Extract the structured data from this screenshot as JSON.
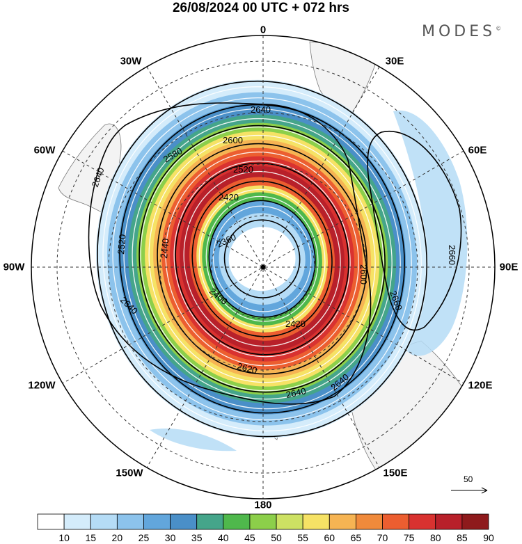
{
  "title": "26/08/2024  00 UTC  + 072 hrs",
  "brand": "MODES",
  "brand_mark": "©",
  "longitudes": {
    "top": "0",
    "top_right": "30E",
    "right_upper": "60E",
    "right": "90E",
    "right_lower": "120E",
    "bottom_right": "150E",
    "bottom": "180",
    "bottom_left": "150W",
    "left_lower": "120W",
    "left": "90W",
    "left_upper": "60W",
    "top_left": "30W"
  },
  "contours": {
    "c2640_top": "2640",
    "c2600": "2600",
    "c2580": "2580",
    "c2520": "2520",
    "c2420": "2420",
    "c2360": "2360",
    "c2640_left": "2640",
    "c2520_left": "2520",
    "c2440": "2440",
    "c2400": "2400",
    "c2640_lower_left": "2640",
    "c2620": "2620",
    "c2640_bottom": "2640",
    "c2640_br": "2640",
    "c2420_low": "2420",
    "c2600_right": "2600",
    "c2660_a": "2660",
    "c2660_b": "2660"
  },
  "reference_vector": "50",
  "colorbar": {
    "labels": [
      "10",
      "15",
      "20",
      "25",
      "30",
      "35",
      "40",
      "45",
      "50",
      "55",
      "60",
      "65",
      "70",
      "75",
      "80",
      "85",
      "90"
    ],
    "colors": [
      "#ffffff",
      "#d4ecfb",
      "#b5dcf6",
      "#8cc3ec",
      "#62a6dc",
      "#4a8fc8",
      "#45a58a",
      "#4fb84c",
      "#8ccf4a",
      "#cde163",
      "#f6e265",
      "#f6b453",
      "#f08a3b",
      "#ec5e30",
      "#d93230",
      "#b8202a",
      "#8e1a1c"
    ]
  }
}
